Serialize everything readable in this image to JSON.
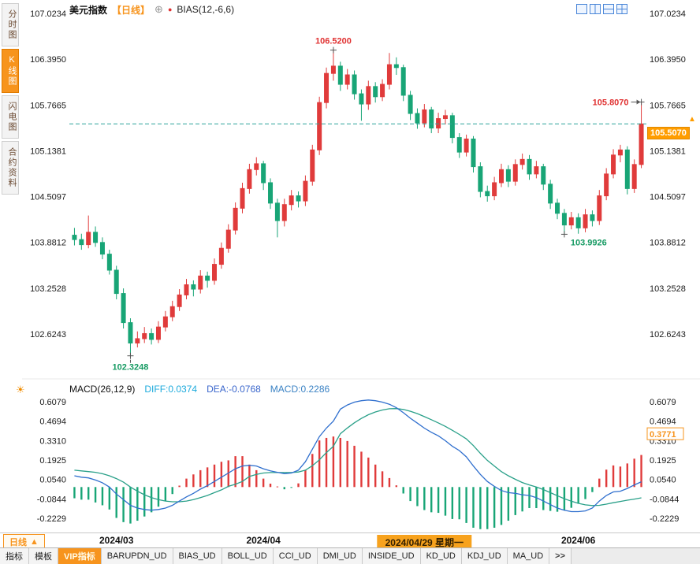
{
  "header": {
    "instrument": "美元指数",
    "period": "【日线】",
    "indicator": "BIAS(12,-6,6)",
    "icons": {
      "add": "⊕",
      "dot": "●"
    },
    "layout_icons": [
      "layout-single",
      "layout-split-vertical",
      "layout-split-horizontal",
      "layout-quad"
    ]
  },
  "sidebar": {
    "items": [
      {
        "label": "分时图",
        "active": false
      },
      {
        "label": "K线图",
        "active": true
      },
      {
        "label": "闪电图",
        "active": false
      },
      {
        "label": "合约资料",
        "active": false
      }
    ]
  },
  "colors": {
    "up": "#e03b3b",
    "down": "#18a576",
    "diff_line": "#2f6fce",
    "dea_line": "#2aa089",
    "accent": "#f7941d",
    "annotation_high": "#e03131",
    "annotation_low": "#159a62",
    "current_line": "#2fa39a",
    "price_tag_bg": "#ff9d00",
    "axis_text": "#1a1a1a"
  },
  "price_arrow": "▲",
  "panel_settings_icon": "☀",
  "period_box": {
    "label": "日线",
    "arrow": "▲"
  },
  "chart_data": [
    {
      "type": "candlestick",
      "symbol": "美元指数",
      "period": "日线",
      "y_ticks": [
        107.0234,
        106.395,
        105.7665,
        105.1381,
        104.5097,
        103.8812,
        103.2528,
        102.6243
      ],
      "x_ticks": [
        {
          "label": "2024/03",
          "index": 6,
          "highlight": false
        },
        {
          "label": "2024/04",
          "index": 27,
          "highlight": false
        },
        {
          "label": "2024/04/29 星期一",
          "index": 50,
          "highlight": true
        },
        {
          "label": "2024/06",
          "index": 72,
          "highlight": false
        }
      ],
      "current_price": 105.507,
      "current_price_label": "105.5070",
      "annotations": [
        {
          "text": "106.5200",
          "price": 106.52,
          "index": 37,
          "placement": "above",
          "role": "high"
        },
        {
          "text": "105.8070",
          "price": 105.807,
          "index": 81,
          "placement": "left",
          "role": "high"
        },
        {
          "text": "103.9926",
          "price": 103.9926,
          "index": 70,
          "placement": "right-below",
          "role": "low"
        },
        {
          "text": "102.3248",
          "price": 102.3248,
          "index": 8,
          "placement": "below",
          "role": "low"
        }
      ],
      "candles": [
        [
          103.98,
          104.08,
          103.84,
          103.92
        ],
        [
          103.92,
          104.0,
          103.78,
          103.85
        ],
        [
          103.85,
          104.25,
          103.8,
          104.02
        ],
        [
          104.02,
          104.1,
          103.82,
          103.88
        ],
        [
          103.88,
          103.95,
          103.65,
          103.72
        ],
        [
          103.72,
          103.78,
          103.44,
          103.5
        ],
        [
          103.5,
          103.56,
          103.1,
          103.18
        ],
        [
          103.18,
          103.25,
          102.7,
          102.78
        ],
        [
          102.78,
          102.84,
          102.3248,
          102.5
        ],
        [
          102.5,
          102.66,
          102.44,
          102.56
        ],
        [
          102.56,
          102.72,
          102.5,
          102.63
        ],
        [
          102.63,
          102.7,
          102.48,
          102.55
        ],
        [
          102.55,
          102.8,
          102.5,
          102.72
        ],
        [
          102.72,
          102.94,
          102.66,
          102.86
        ],
        [
          102.86,
          103.08,
          102.8,
          103.0
        ],
        [
          103.0,
          103.24,
          102.94,
          103.16
        ],
        [
          103.16,
          103.38,
          103.1,
          103.3
        ],
        [
          103.3,
          103.36,
          103.14,
          103.24
        ],
        [
          103.24,
          103.5,
          103.18,
          103.42
        ],
        [
          103.42,
          103.48,
          103.26,
          103.36
        ],
        [
          103.36,
          103.66,
          103.3,
          103.58
        ],
        [
          103.58,
          103.88,
          103.52,
          103.8
        ],
        [
          103.8,
          104.13,
          103.74,
          104.05
        ],
        [
          104.05,
          104.43,
          103.99,
          104.35
        ],
        [
          104.35,
          104.7,
          104.28,
          104.62
        ],
        [
          104.62,
          104.96,
          104.55,
          104.88
        ],
        [
          104.88,
          105.05,
          104.8,
          104.96
        ],
        [
          104.96,
          105.0,
          104.6,
          104.7
        ],
        [
          104.7,
          104.76,
          104.34,
          104.42
        ],
        [
          104.42,
          104.48,
          103.95,
          104.18
        ],
        [
          104.18,
          104.48,
          104.1,
          104.4
        ],
        [
          104.4,
          104.6,
          104.32,
          104.52
        ],
        [
          104.52,
          104.58,
          104.36,
          104.45
        ],
        [
          104.45,
          104.8,
          104.38,
          104.72
        ],
        [
          104.72,
          105.22,
          104.66,
          105.15
        ],
        [
          105.15,
          105.88,
          105.08,
          105.8
        ],
        [
          105.8,
          106.28,
          105.72,
          106.2
        ],
        [
          106.2,
          106.52,
          106.1,
          106.3
        ],
        [
          106.3,
          106.36,
          105.96,
          106.05
        ],
        [
          106.05,
          106.26,
          105.98,
          106.18
        ],
        [
          106.18,
          106.24,
          105.84,
          105.92
        ],
        [
          105.92,
          105.98,
          105.55,
          105.78
        ],
        [
          105.78,
          106.1,
          105.7,
          106.02
        ],
        [
          106.02,
          106.08,
          105.8,
          105.88
        ],
        [
          105.88,
          106.12,
          105.82,
          106.05
        ],
        [
          106.05,
          106.48,
          105.98,
          106.32
        ],
        [
          106.32,
          106.42,
          106.18,
          106.28
        ],
        [
          106.28,
          106.32,
          105.82,
          105.9
        ],
        [
          105.9,
          105.96,
          105.56,
          105.65
        ],
        [
          105.65,
          105.72,
          105.44,
          105.52
        ],
        [
          105.52,
          105.78,
          105.46,
          105.7
        ],
        [
          105.7,
          105.74,
          105.38,
          105.45
        ],
        [
          105.45,
          105.66,
          105.38,
          105.58
        ],
        [
          105.58,
          105.7,
          105.5,
          105.62
        ],
        [
          105.62,
          105.66,
          105.24,
          105.32
        ],
        [
          105.32,
          105.38,
          105.04,
          105.12
        ],
        [
          105.12,
          105.36,
          105.06,
          105.3
        ],
        [
          105.3,
          105.34,
          104.84,
          104.92
        ],
        [
          104.92,
          104.98,
          104.5,
          104.58
        ],
        [
          104.58,
          104.66,
          104.44,
          104.52
        ],
        [
          104.52,
          104.78,
          104.46,
          104.7
        ],
        [
          104.7,
          104.96,
          104.64,
          104.88
        ],
        [
          104.88,
          104.94,
          104.64,
          104.72
        ],
        [
          104.72,
          105.02,
          104.66,
          104.95
        ],
        [
          104.95,
          105.1,
          104.88,
          105.02
        ],
        [
          105.02,
          105.08,
          104.74,
          104.82
        ],
        [
          104.82,
          105.0,
          104.76,
          104.92
        ],
        [
          104.92,
          104.96,
          104.6,
          104.68
        ],
        [
          104.68,
          104.74,
          104.34,
          104.42
        ],
        [
          104.42,
          104.48,
          104.2,
          104.28
        ],
        [
          104.28,
          104.34,
          103.9926,
          104.12
        ],
        [
          104.12,
          104.3,
          104.06,
          104.22
        ],
        [
          104.22,
          104.28,
          104.0,
          104.08
        ],
        [
          104.08,
          104.34,
          104.02,
          104.26
        ],
        [
          104.26,
          104.32,
          104.1,
          104.18
        ],
        [
          104.18,
          104.6,
          104.12,
          104.52
        ],
        [
          104.52,
          104.9,
          104.46,
          104.82
        ],
        [
          104.82,
          105.16,
          104.76,
          105.08
        ],
        [
          105.08,
          105.22,
          104.98,
          105.15
        ],
        [
          105.15,
          105.2,
          104.54,
          104.62
        ],
        [
          104.62,
          105.02,
          104.56,
          104.95
        ],
        [
          104.95,
          105.807,
          104.9,
          105.507
        ]
      ]
    },
    {
      "type": "macd",
      "params": "MACD(26,12,9)",
      "labels": {
        "diff": "DIFF:0.0374",
        "dea": "DEA:-0.0768",
        "macd": "MACD:0.2286"
      },
      "y_ticks": [
        0.6079,
        0.4694,
        0.331,
        0.1925,
        0.054,
        -0.0844,
        -0.2229
      ],
      "right_tag": "0.3771",
      "diff": [
        0.08,
        0.07,
        0.065,
        0.05,
        0.03,
        0.0,
        -0.05,
        -0.09,
        -0.13,
        -0.15,
        -0.16,
        -0.165,
        -0.16,
        -0.15,
        -0.13,
        -0.1,
        -0.07,
        -0.045,
        -0.015,
        0.01,
        0.04,
        0.07,
        0.1,
        0.13,
        0.15,
        0.155,
        0.15,
        0.13,
        0.115,
        0.105,
        0.095,
        0.1,
        0.12,
        0.18,
        0.27,
        0.36,
        0.42,
        0.47,
        0.555,
        0.585,
        0.605,
        0.615,
        0.62,
        0.615,
        0.605,
        0.59,
        0.565,
        0.53,
        0.49,
        0.455,
        0.42,
        0.39,
        0.365,
        0.33,
        0.29,
        0.26,
        0.215,
        0.15,
        0.09,
        0.04,
        0.005,
        -0.025,
        -0.04,
        -0.045,
        -0.055,
        -0.06,
        -0.075,
        -0.1,
        -0.125,
        -0.15,
        -0.165,
        -0.175,
        -0.175,
        -0.17,
        -0.15,
        -0.1,
        -0.06,
        -0.035,
        -0.03,
        -0.01,
        0.015,
        0.0374
      ],
      "dea": [
        0.12,
        0.115,
        0.11,
        0.105,
        0.095,
        0.08,
        0.06,
        0.035,
        0.0,
        -0.03,
        -0.055,
        -0.075,
        -0.09,
        -0.1,
        -0.105,
        -0.105,
        -0.1,
        -0.09,
        -0.075,
        -0.06,
        -0.04,
        -0.02,
        0.005,
        0.02,
        0.04,
        0.075,
        0.09,
        0.1,
        0.103,
        0.103,
        0.103,
        0.103,
        0.107,
        0.12,
        0.152,
        0.194,
        0.245,
        0.29,
        0.38,
        0.421,
        0.458,
        0.489,
        0.515,
        0.535,
        0.549,
        0.558,
        0.559,
        0.553,
        0.54,
        0.523,
        0.502,
        0.48,
        0.457,
        0.432,
        0.404,
        0.375,
        0.343,
        0.295,
        0.24,
        0.19,
        0.15,
        0.11,
        0.08,
        0.055,
        0.032,
        0.015,
        0.0,
        -0.018,
        -0.04,
        -0.062,
        -0.083,
        -0.101,
        -0.116,
        -0.127,
        -0.132,
        -0.13,
        -0.122,
        -0.112,
        -0.103,
        -0.094,
        -0.086,
        -0.0768
      ]
    }
  ],
  "bottom_tabs": [
    {
      "label": "指标",
      "type": "plain"
    },
    {
      "label": "模板",
      "type": "plain"
    },
    {
      "label": "VIP指标",
      "type": "vip"
    },
    {
      "label": "BARUPDN_UD",
      "type": "plain"
    },
    {
      "label": "BIAS_UD",
      "type": "plain"
    },
    {
      "label": "BOLL_UD",
      "type": "plain"
    },
    {
      "label": "CCI_UD",
      "type": "plain"
    },
    {
      "label": "DMI_UD",
      "type": "plain"
    },
    {
      "label": "INSIDE_UD",
      "type": "plain"
    },
    {
      "label": "KD_UD",
      "type": "plain"
    },
    {
      "label": "KDJ_UD",
      "type": "plain"
    },
    {
      "label": "MA_UD",
      "type": "plain"
    },
    {
      "label": ">>",
      "type": "more"
    }
  ]
}
